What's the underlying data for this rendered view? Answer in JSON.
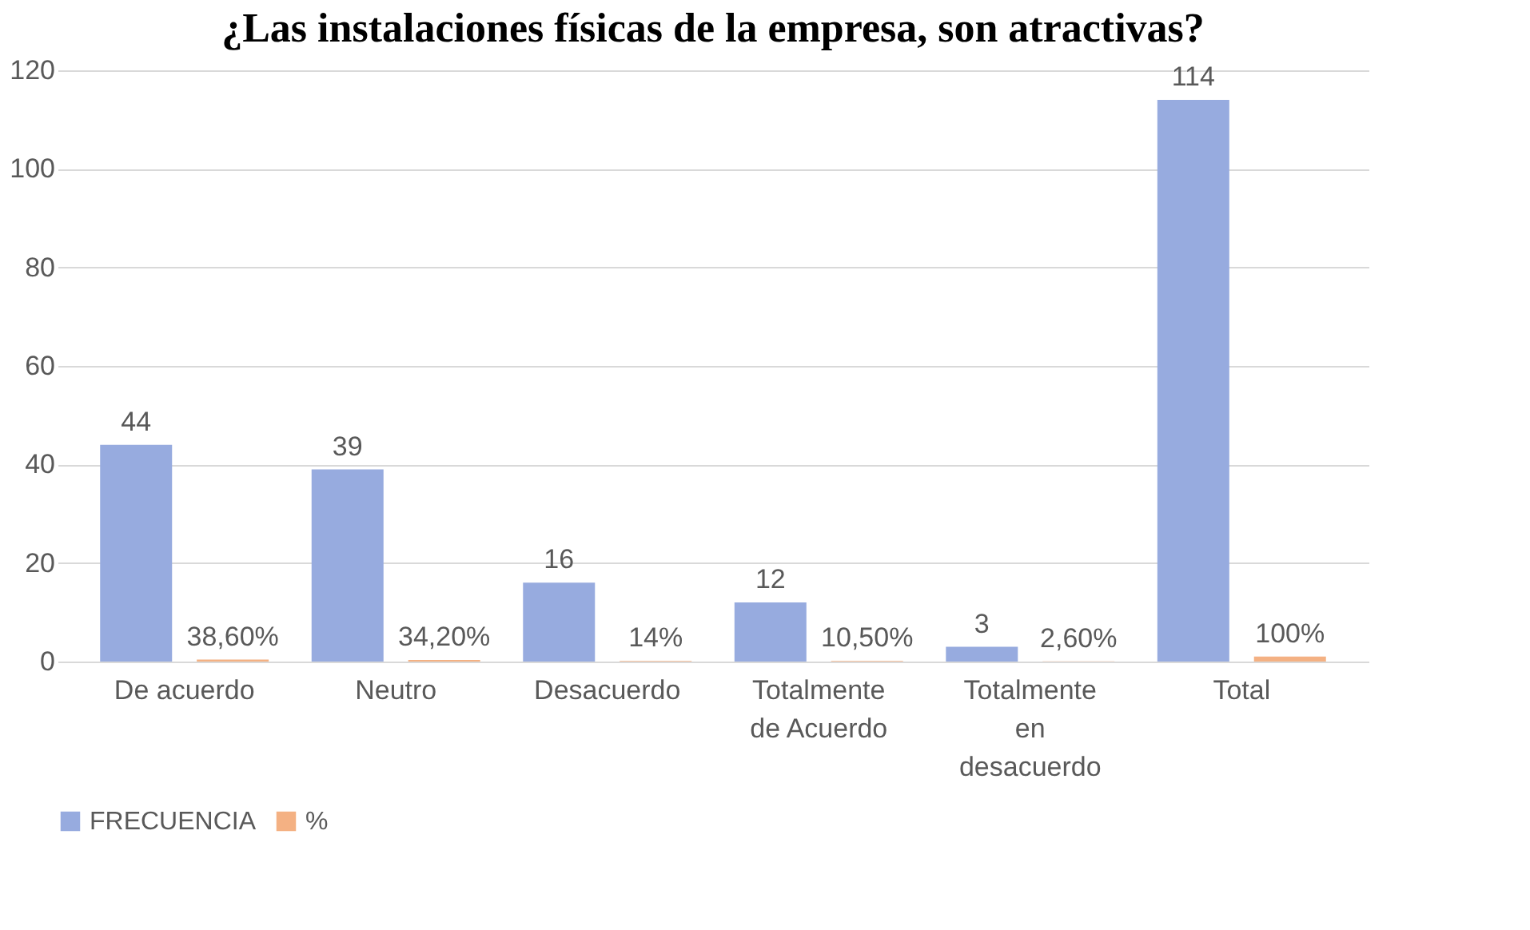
{
  "chart_data": {
    "type": "bar",
    "title": "¿Las instalaciones físicas de la empresa, son atractivas?",
    "categories": [
      "De acuerdo",
      "Neutro",
      "Desacuerdo",
      "Totalmente\nde Acuerdo",
      "Totalmente\nen\ndesacuerdo",
      "Total"
    ],
    "series": [
      {
        "name": "FRECUENCIA",
        "color": "#97abdf",
        "values": [
          44,
          39,
          16,
          12,
          3,
          114
        ],
        "value_labels": [
          "44",
          "39",
          "16",
          "12",
          "3",
          "114"
        ]
      },
      {
        "name": "%",
        "color": "#f4b183",
        "values": [
          0.386,
          0.342,
          0.14,
          0.105,
          0.026,
          1
        ],
        "value_labels": [
          "38,60%",
          "34,20%",
          "14%",
          "10,50%",
          "2,60%",
          "100%"
        ]
      }
    ],
    "ylim": [
      0,
      120
    ],
    "yticks": [
      0,
      20,
      40,
      60,
      80,
      100,
      120
    ],
    "grid": "y",
    "legend": "bottom"
  }
}
